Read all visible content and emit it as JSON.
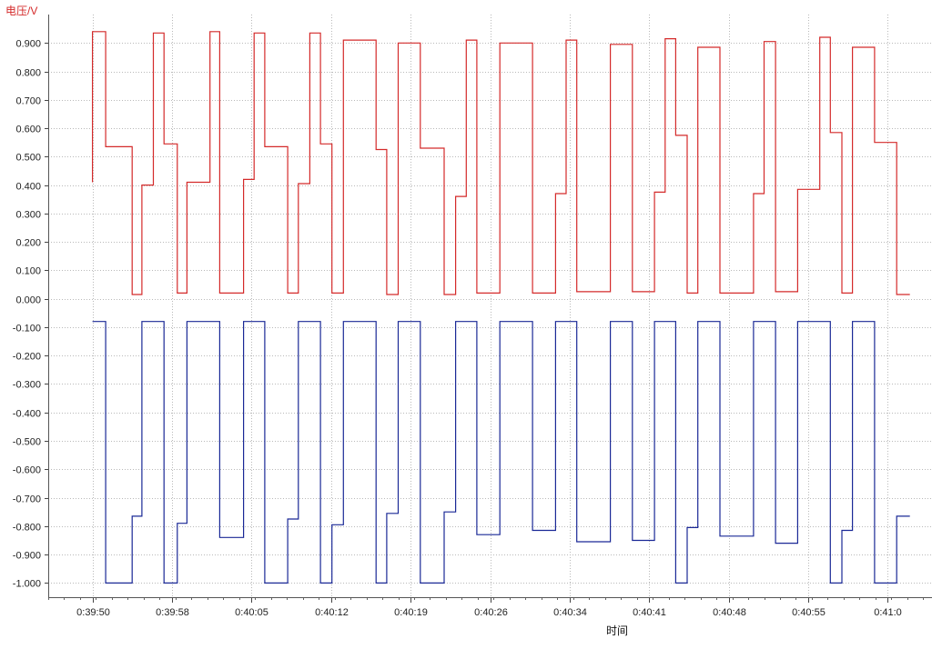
{
  "chart_data": {
    "type": "line",
    "title": "",
    "ylabel": "电压/V",
    "xlabel": "时间",
    "ylim": [
      -1.05,
      1.0
    ],
    "xlim": [
      0,
      100
    ],
    "grid": true,
    "y_ticks": [
      -1.0,
      -0.9,
      -0.8,
      -0.7,
      -0.6,
      -0.5,
      -0.4,
      -0.3,
      -0.2,
      -0.1,
      0.0,
      0.1,
      0.2,
      0.3,
      0.4,
      0.5,
      0.6,
      0.7,
      0.8,
      0.9
    ],
    "y_tick_labels": [
      "-1.000",
      "-0.900",
      "-0.800",
      "-0.700",
      "-0.600",
      "-0.500",
      "-0.400",
      "-0.300",
      "-0.200",
      "-0.100",
      "0.000",
      "0.100",
      "0.200",
      "0.300",
      "0.400",
      "0.500",
      "0.600",
      "0.700",
      "0.800",
      "0.900"
    ],
    "x_ticks": [
      5,
      14,
      23,
      32,
      41,
      50,
      59,
      68,
      77,
      86,
      95
    ],
    "x_tick_labels": [
      "0:39:50",
      "0:39:58",
      "0:40:05",
      "0:40:12",
      "0:40:19",
      "0:40:26",
      "0:40:34",
      "0:40:41",
      "0:40:48",
      "0:40:55",
      "0:41:0"
    ],
    "series": [
      {
        "color": "#d42a2a",
        "step_points": [
          [
            5.0,
            0.41
          ],
          [
            5.0,
            0.94
          ],
          [
            6.5,
            0.94
          ],
          [
            6.5,
            0.535
          ],
          [
            9.5,
            0.535
          ],
          [
            9.5,
            0.015
          ],
          [
            10.6,
            0.015
          ],
          [
            10.6,
            0.4
          ],
          [
            11.9,
            0.4
          ],
          [
            11.9,
            0.935
          ],
          [
            13.1,
            0.935
          ],
          [
            13.1,
            0.545
          ],
          [
            14.6,
            0.545
          ],
          [
            14.6,
            0.02
          ],
          [
            15.7,
            0.02
          ],
          [
            15.7,
            0.41
          ],
          [
            18.3,
            0.41
          ],
          [
            18.3,
            0.94
          ],
          [
            19.4,
            0.94
          ],
          [
            19.4,
            0.02
          ],
          [
            22.1,
            0.02
          ],
          [
            22.1,
            0.42
          ],
          [
            23.3,
            0.42
          ],
          [
            23.3,
            0.935
          ],
          [
            24.5,
            0.935
          ],
          [
            24.5,
            0.535
          ],
          [
            27.1,
            0.535
          ],
          [
            27.1,
            0.02
          ],
          [
            28.3,
            0.02
          ],
          [
            28.3,
            0.405
          ],
          [
            29.6,
            0.405
          ],
          [
            29.6,
            0.935
          ],
          [
            30.8,
            0.935
          ],
          [
            30.8,
            0.545
          ],
          [
            32.1,
            0.545
          ],
          [
            32.1,
            0.02
          ],
          [
            33.4,
            0.02
          ],
          [
            33.4,
            0.91
          ],
          [
            37.1,
            0.91
          ],
          [
            37.1,
            0.525
          ],
          [
            38.3,
            0.525
          ],
          [
            38.3,
            0.015
          ],
          [
            39.6,
            0.015
          ],
          [
            39.6,
            0.9
          ],
          [
            42.1,
            0.9
          ],
          [
            42.1,
            0.53
          ],
          [
            44.8,
            0.53
          ],
          [
            44.8,
            0.015
          ],
          [
            46.1,
            0.015
          ],
          [
            46.1,
            0.36
          ],
          [
            47.3,
            0.36
          ],
          [
            47.3,
            0.91
          ],
          [
            48.5,
            0.91
          ],
          [
            48.5,
            0.02
          ],
          [
            51.1,
            0.02
          ],
          [
            51.1,
            0.9
          ],
          [
            54.8,
            0.9
          ],
          [
            54.8,
            0.02
          ],
          [
            57.4,
            0.02
          ],
          [
            57.4,
            0.37
          ],
          [
            58.6,
            0.37
          ],
          [
            58.6,
            0.91
          ],
          [
            59.8,
            0.91
          ],
          [
            59.8,
            0.025
          ],
          [
            63.6,
            0.025
          ],
          [
            63.6,
            0.895
          ],
          [
            66.1,
            0.895
          ],
          [
            66.1,
            0.025
          ],
          [
            68.6,
            0.025
          ],
          [
            68.6,
            0.375
          ],
          [
            69.8,
            0.375
          ],
          [
            69.8,
            0.915
          ],
          [
            71.0,
            0.915
          ],
          [
            71.0,
            0.575
          ],
          [
            72.3,
            0.575
          ],
          [
            72.3,
            0.02
          ],
          [
            73.5,
            0.02
          ],
          [
            73.5,
            0.885
          ],
          [
            76.0,
            0.885
          ],
          [
            76.0,
            0.02
          ],
          [
            79.8,
            0.02
          ],
          [
            79.8,
            0.37
          ],
          [
            81.0,
            0.37
          ],
          [
            81.0,
            0.905
          ],
          [
            82.3,
            0.905
          ],
          [
            82.3,
            0.025
          ],
          [
            84.8,
            0.025
          ],
          [
            84.8,
            0.385
          ],
          [
            87.3,
            0.385
          ],
          [
            87.3,
            0.92
          ],
          [
            88.5,
            0.92
          ],
          [
            88.5,
            0.585
          ],
          [
            89.8,
            0.585
          ],
          [
            89.8,
            0.02
          ],
          [
            91.0,
            0.02
          ],
          [
            91.0,
            0.885
          ],
          [
            93.5,
            0.885
          ],
          [
            93.5,
            0.55
          ],
          [
            96.0,
            0.55
          ],
          [
            96.0,
            0.015
          ],
          [
            97.5,
            0.015
          ]
        ]
      },
      {
        "color": "#1a2896",
        "step_points": [
          [
            5.0,
            -0.08
          ],
          [
            6.5,
            -0.08
          ],
          [
            6.5,
            -1.0
          ],
          [
            9.5,
            -1.0
          ],
          [
            9.5,
            -0.765
          ],
          [
            10.6,
            -0.765
          ],
          [
            10.6,
            -0.08
          ],
          [
            13.1,
            -0.08
          ],
          [
            13.1,
            -1.0
          ],
          [
            14.6,
            -1.0
          ],
          [
            14.6,
            -0.79
          ],
          [
            15.7,
            -0.79
          ],
          [
            15.7,
            -0.08
          ],
          [
            19.4,
            -0.08
          ],
          [
            19.4,
            -0.84
          ],
          [
            22.1,
            -0.84
          ],
          [
            22.1,
            -0.08
          ],
          [
            24.5,
            -0.08
          ],
          [
            24.5,
            -1.0
          ],
          [
            27.1,
            -1.0
          ],
          [
            27.1,
            -0.775
          ],
          [
            28.3,
            -0.775
          ],
          [
            28.3,
            -0.08
          ],
          [
            30.8,
            -0.08
          ],
          [
            30.8,
            -1.0
          ],
          [
            32.1,
            -1.0
          ],
          [
            32.1,
            -0.795
          ],
          [
            33.4,
            -0.795
          ],
          [
            33.4,
            -0.08
          ],
          [
            37.1,
            -0.08
          ],
          [
            37.1,
            -1.0
          ],
          [
            38.3,
            -1.0
          ],
          [
            38.3,
            -0.755
          ],
          [
            39.6,
            -0.755
          ],
          [
            39.6,
            -0.08
          ],
          [
            42.1,
            -0.08
          ],
          [
            42.1,
            -1.0
          ],
          [
            44.8,
            -1.0
          ],
          [
            44.8,
            -0.75
          ],
          [
            46.1,
            -0.75
          ],
          [
            46.1,
            -0.08
          ],
          [
            48.5,
            -0.08
          ],
          [
            48.5,
            -0.83
          ],
          [
            51.1,
            -0.83
          ],
          [
            51.1,
            -0.08
          ],
          [
            54.8,
            -0.08
          ],
          [
            54.8,
            -0.815
          ],
          [
            57.4,
            -0.815
          ],
          [
            57.4,
            -0.08
          ],
          [
            59.8,
            -0.08
          ],
          [
            59.8,
            -0.855
          ],
          [
            63.6,
            -0.855
          ],
          [
            63.6,
            -0.08
          ],
          [
            66.1,
            -0.08
          ],
          [
            66.1,
            -0.85
          ],
          [
            68.6,
            -0.85
          ],
          [
            68.6,
            -0.08
          ],
          [
            71.0,
            -0.08
          ],
          [
            71.0,
            -1.0
          ],
          [
            72.3,
            -1.0
          ],
          [
            72.3,
            -0.805
          ],
          [
            73.5,
            -0.805
          ],
          [
            73.5,
            -0.08
          ],
          [
            76.0,
            -0.08
          ],
          [
            76.0,
            -0.835
          ],
          [
            79.8,
            -0.835
          ],
          [
            79.8,
            -0.08
          ],
          [
            82.3,
            -0.08
          ],
          [
            82.3,
            -0.86
          ],
          [
            84.8,
            -0.86
          ],
          [
            84.8,
            -0.08
          ],
          [
            88.5,
            -0.08
          ],
          [
            88.5,
            -1.0
          ],
          [
            89.8,
            -1.0
          ],
          [
            89.8,
            -0.815
          ],
          [
            91.0,
            -0.815
          ],
          [
            91.0,
            -0.08
          ],
          [
            93.5,
            -0.08
          ],
          [
            93.5,
            -1.0
          ],
          [
            96.0,
            -1.0
          ],
          [
            96.0,
            -0.765
          ],
          [
            97.5,
            -0.765
          ]
        ]
      }
    ]
  }
}
